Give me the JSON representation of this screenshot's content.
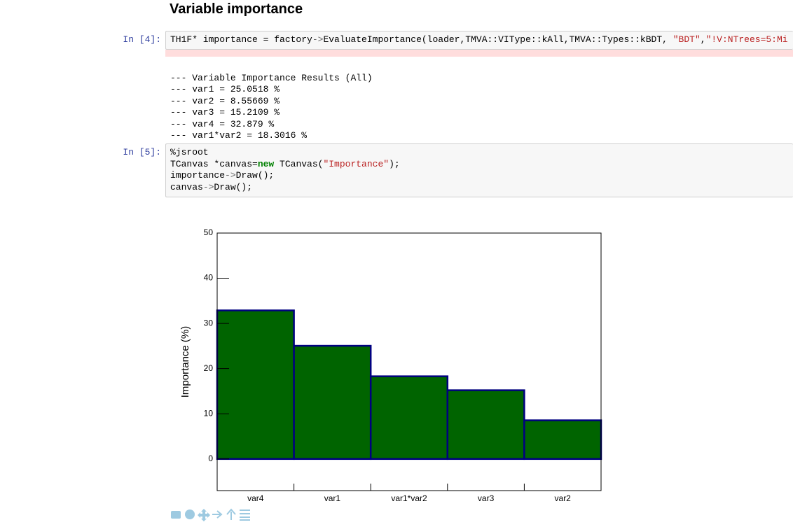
{
  "heading": "Variable importance",
  "cells": [
    {
      "prompt": "In [4]:",
      "code": [
        [
          "TH1F* importance = factory",
          "->",
          "EvaluateImportance(loader,TMVA::VIType::kAll,TMVA::Types::kBDT, ",
          "\"BDT\"",
          ",",
          "\"!V:NTrees=5:Mi"
        ]
      ],
      "output": [
        "--- Variable Importance Results (All)",
        "--- var1 = 25.0518 %",
        "--- var2 = 8.55669 %",
        "--- var3 = 15.2109 %",
        "--- var4 = 32.879 %",
        "--- var1*var2 = 18.3016 %"
      ]
    },
    {
      "prompt": "In [5]:",
      "code": [
        [
          "%jsroot"
        ],
        [
          "TCanvas *canvas=",
          "new",
          " TCanvas(",
          "\"Importance\"",
          ");"
        ],
        [
          "importance",
          "->",
          "Draw();"
        ],
        [
          "canvas",
          "->",
          "Draw();"
        ]
      ]
    }
  ],
  "chart_data": {
    "type": "histogram",
    "y_label": "Importance (%)",
    "categories": [
      "var4",
      "var1",
      "var1*var2",
      "var3",
      "var2"
    ],
    "values": [
      32.879,
      25.0518,
      18.3016,
      15.2109,
      8.55669
    ],
    "color": "#006400",
    "edge_color": "#000080",
    "ylim": [
      -7,
      50
    ],
    "yticks": [
      0,
      10,
      20,
      30,
      40,
      50
    ]
  }
}
